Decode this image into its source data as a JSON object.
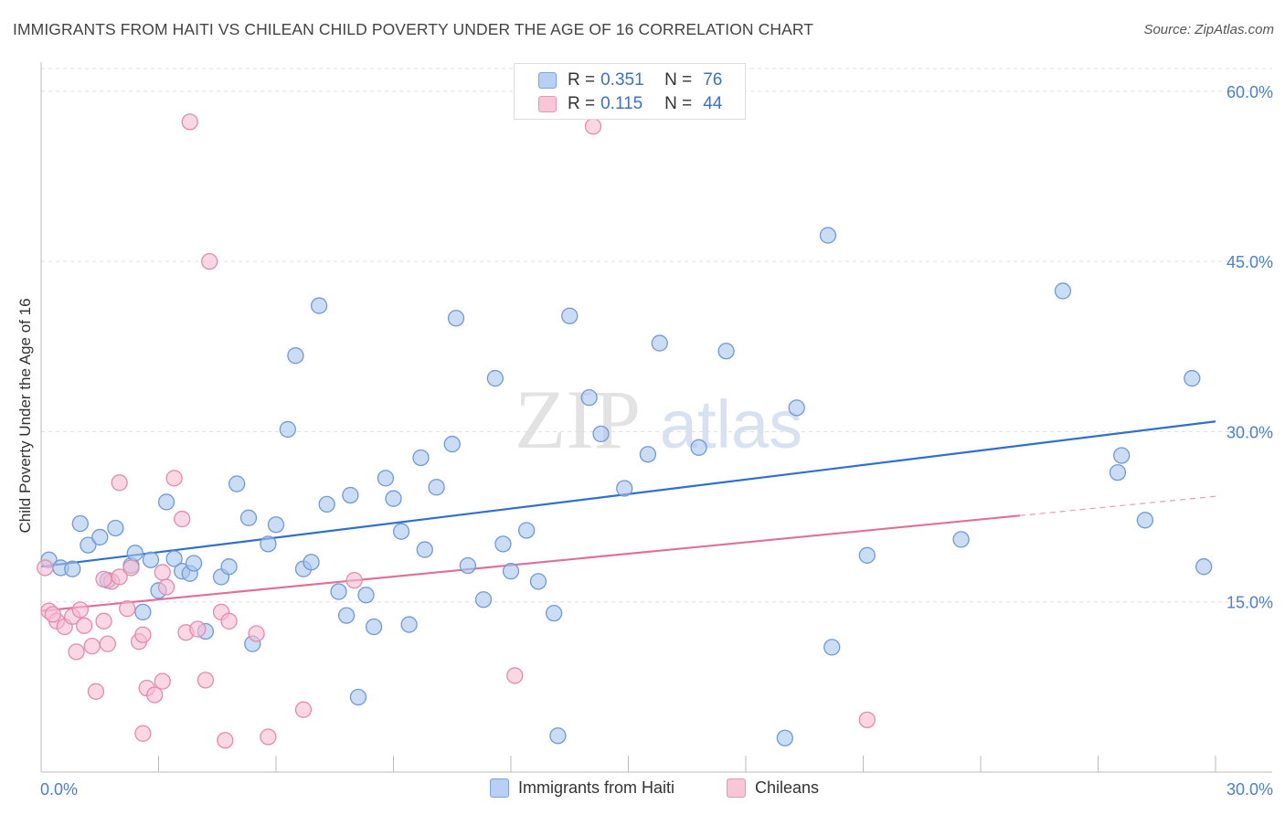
{
  "title": "IMMIGRANTS FROM HAITI VS CHILEAN CHILD POVERTY UNDER THE AGE OF 16 CORRELATION CHART",
  "source": "Source: ZipAtlas.com",
  "watermark": {
    "zip": "ZIP",
    "atlas": "atlas"
  },
  "legend": {
    "r_label": "R =",
    "n_label": "N =",
    "items": [
      {
        "r": "0.351",
        "n": "76",
        "fill": "#b8d0f3",
        "stroke": "#7aa3e0"
      },
      {
        "r": "0.115",
        "n": "44",
        "fill": "#f8c6d6",
        "stroke": "#e896b3"
      }
    ]
  },
  "bottom_legend": [
    "Immigrants from Haiti",
    "Chileans"
  ],
  "colors": {
    "blue_fill": "#a9c5ee",
    "blue_stroke": "#6f9ad8",
    "blue_line": "#2f6fd0",
    "pink_fill": "#f6bdd0",
    "pink_stroke": "#e68aad",
    "pink_line": "#e0709a",
    "tick_label": "#4a7fd6",
    "grid": "#dddddd"
  },
  "chart_data": {
    "type": "scatter",
    "title": "IMMIGRANTS FROM HAITI VS CHILEAN CHILD POVERTY UNDER THE AGE OF 16 CORRELATION CHART",
    "xlabel": "",
    "ylabel": "Child Poverty Under the Age of 16",
    "xlim": [
      0,
      30
    ],
    "ylim": [
      0,
      62
    ],
    "x_tick_labels": [
      "0.0%",
      "30.0%"
    ],
    "y_ticks": [
      15,
      30,
      45,
      60
    ],
    "y_tick_labels": [
      "15.0%",
      "30.0%",
      "45.0%",
      "60.0%"
    ],
    "grid": true,
    "legend_position": "top-center",
    "series": [
      {
        "name": "Immigrants from Haiti",
        "r": 0.351,
        "n": 76,
        "trend": {
          "x": [
            0,
            30
          ],
          "y": [
            18.1,
            30.9
          ],
          "dashed_from": null
        },
        "points": [
          [
            0.2,
            18.7
          ],
          [
            0.5,
            18.0
          ],
          [
            0.8,
            17.9
          ],
          [
            1.0,
            21.9
          ],
          [
            1.2,
            20.0
          ],
          [
            1.5,
            20.7
          ],
          [
            1.7,
            16.9
          ],
          [
            1.9,
            21.5
          ],
          [
            2.3,
            18.2
          ],
          [
            2.4,
            19.3
          ],
          [
            2.6,
            14.1
          ],
          [
            2.8,
            18.7
          ],
          [
            3.0,
            16.0
          ],
          [
            3.2,
            23.8
          ],
          [
            3.4,
            18.8
          ],
          [
            3.6,
            17.7
          ],
          [
            3.8,
            17.5
          ],
          [
            3.9,
            18.4
          ],
          [
            4.2,
            12.4
          ],
          [
            4.6,
            17.2
          ],
          [
            4.8,
            18.1
          ],
          [
            5.0,
            25.4
          ],
          [
            5.3,
            22.4
          ],
          [
            5.4,
            11.3
          ],
          [
            5.8,
            20.1
          ],
          [
            6.0,
            21.8
          ],
          [
            6.3,
            30.2
          ],
          [
            6.5,
            36.7
          ],
          [
            6.7,
            17.9
          ],
          [
            6.9,
            18.5
          ],
          [
            7.1,
            41.1
          ],
          [
            7.3,
            23.6
          ],
          [
            7.6,
            15.9
          ],
          [
            7.8,
            13.8
          ],
          [
            7.9,
            24.4
          ],
          [
            8.1,
            6.6
          ],
          [
            8.3,
            15.6
          ],
          [
            8.5,
            12.8
          ],
          [
            8.8,
            25.9
          ],
          [
            9.0,
            24.1
          ],
          [
            9.2,
            21.2
          ],
          [
            9.4,
            13.0
          ],
          [
            9.7,
            27.7
          ],
          [
            9.8,
            19.6
          ],
          [
            10.1,
            25.1
          ],
          [
            10.5,
            28.9
          ],
          [
            10.6,
            40.0
          ],
          [
            10.9,
            18.2
          ],
          [
            11.3,
            15.2
          ],
          [
            11.6,
            34.7
          ],
          [
            11.8,
            20.1
          ],
          [
            12.0,
            17.7
          ],
          [
            12.4,
            21.3
          ],
          [
            12.7,
            16.8
          ],
          [
            13.1,
            14.0
          ],
          [
            13.2,
            3.2
          ],
          [
            13.5,
            40.2
          ],
          [
            14.0,
            33.0
          ],
          [
            14.3,
            29.8
          ],
          [
            14.9,
            25.0
          ],
          [
            15.5,
            28.0
          ],
          [
            15.8,
            37.8
          ],
          [
            16.8,
            28.6
          ],
          [
            17.5,
            37.1
          ],
          [
            19.0,
            3.0
          ],
          [
            19.3,
            32.1
          ],
          [
            20.1,
            47.3
          ],
          [
            20.2,
            11.0
          ],
          [
            21.1,
            19.1
          ],
          [
            23.5,
            20.5
          ],
          [
            26.1,
            42.4
          ],
          [
            27.5,
            26.4
          ],
          [
            27.6,
            27.9
          ],
          [
            28.2,
            22.2
          ],
          [
            29.4,
            34.7
          ],
          [
            29.7,
            18.1
          ]
        ]
      },
      {
        "name": "Chileans",
        "r": 0.115,
        "n": 44,
        "trend": {
          "x": [
            0,
            25.0,
            30
          ],
          "y": [
            14.2,
            22.6,
            24.3
          ],
          "dashed_from": 25.0
        },
        "points": [
          [
            0.1,
            18.0
          ],
          [
            0.2,
            14.2
          ],
          [
            0.4,
            13.3
          ],
          [
            0.6,
            12.8
          ],
          [
            0.8,
            13.7
          ],
          [
            0.9,
            10.6
          ],
          [
            1.0,
            14.3
          ],
          [
            1.1,
            12.9
          ],
          [
            1.3,
            11.1
          ],
          [
            1.4,
            7.1
          ],
          [
            1.6,
            13.3
          ],
          [
            1.7,
            11.3
          ],
          [
            1.8,
            16.8
          ],
          [
            2.0,
            17.2
          ],
          [
            2.0,
            25.5
          ],
          [
            2.2,
            14.4
          ],
          [
            2.5,
            11.5
          ],
          [
            2.6,
            12.1
          ],
          [
            2.6,
            3.4
          ],
          [
            2.7,
            7.4
          ],
          [
            2.9,
            6.8
          ],
          [
            3.1,
            17.6
          ],
          [
            3.1,
            8.0
          ],
          [
            3.2,
            16.3
          ],
          [
            3.4,
            25.9
          ],
          [
            3.6,
            22.3
          ],
          [
            3.7,
            12.3
          ],
          [
            3.8,
            57.3
          ],
          [
            4.0,
            12.6
          ],
          [
            4.2,
            8.1
          ],
          [
            4.3,
            45.0
          ],
          [
            4.6,
            14.1
          ],
          [
            4.7,
            2.8
          ],
          [
            4.8,
            13.3
          ],
          [
            5.5,
            12.2
          ],
          [
            5.8,
            3.1
          ],
          [
            6.7,
            5.5
          ],
          [
            8.0,
            16.9
          ],
          [
            12.1,
            8.5
          ],
          [
            14.1,
            56.9
          ],
          [
            21.1,
            4.6
          ],
          [
            0.3,
            13.9
          ],
          [
            1.6,
            17.0
          ],
          [
            2.3,
            18.0
          ]
        ]
      }
    ]
  }
}
